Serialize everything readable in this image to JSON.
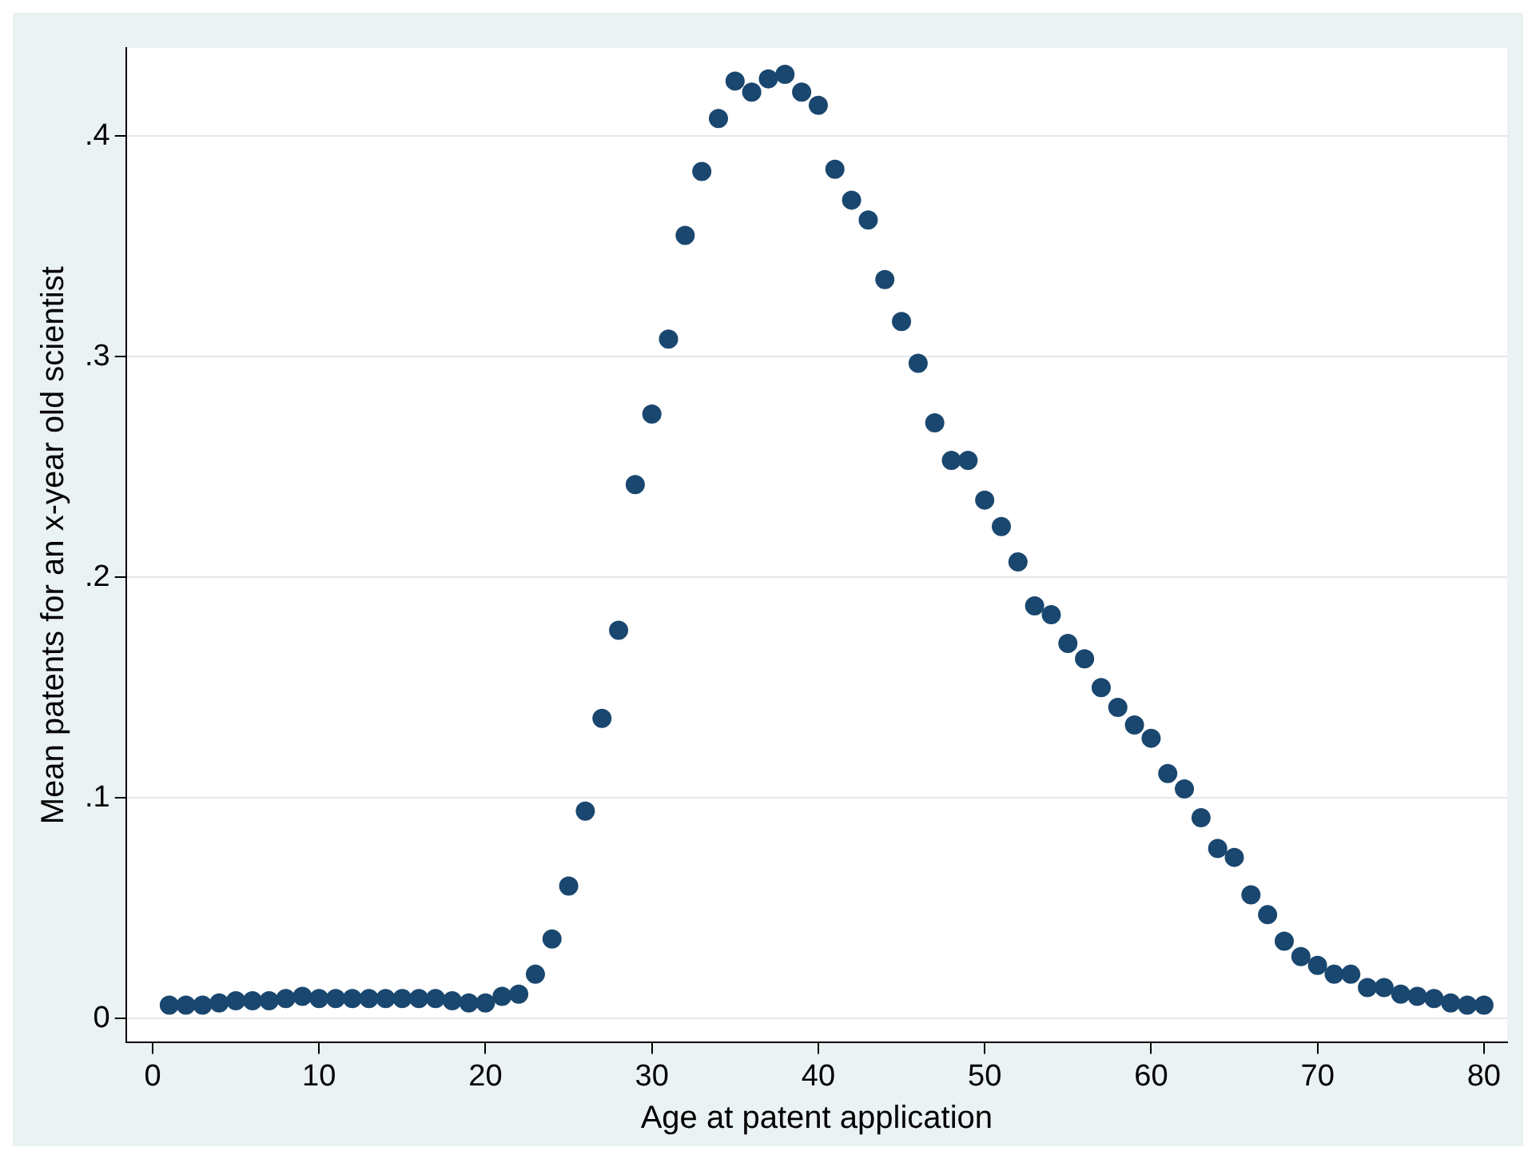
{
  "chart_data": {
    "type": "scatter",
    "xlabel": "Age at patent application",
    "ylabel": "Mean patents for an x-year old scientist",
    "x": [
      1,
      2,
      3,
      4,
      5,
      6,
      7,
      8,
      9,
      10,
      11,
      12,
      13,
      14,
      15,
      16,
      17,
      18,
      19,
      20,
      21,
      22,
      23,
      24,
      25,
      26,
      27,
      28,
      29,
      30,
      31,
      32,
      33,
      34,
      35,
      36,
      37,
      38,
      39,
      40,
      41,
      42,
      43,
      44,
      45,
      46,
      47,
      48,
      49,
      50,
      51,
      52,
      53,
      54,
      55,
      56,
      57,
      58,
      59,
      60,
      61,
      62,
      63,
      64,
      65,
      66,
      67,
      68,
      69,
      70,
      71,
      72,
      73,
      74,
      75,
      76,
      77,
      78,
      79,
      80
    ],
    "series": [
      {
        "color": "#1a476f",
        "values": [
          0.006,
          0.006,
          0.006,
          0.007,
          0.008,
          0.008,
          0.008,
          0.009,
          0.01,
          0.009,
          0.009,
          0.009,
          0.009,
          0.009,
          0.009,
          0.009,
          0.009,
          0.008,
          0.007,
          0.007,
          0.01,
          0.011,
          0.02,
          0.036,
          0.06,
          0.094,
          0.136,
          0.176,
          0.242,
          0.274,
          0.308,
          0.355,
          0.384,
          0.408,
          0.425,
          0.42,
          0.426,
          0.428,
          0.42,
          0.414,
          0.385,
          0.371,
          0.362,
          0.335,
          0.316,
          0.297,
          0.27,
          0.253,
          0.253,
          0.235,
          0.223,
          0.207,
          0.187,
          0.183,
          0.17,
          0.163,
          0.15,
          0.141,
          0.133,
          0.127,
          0.111,
          0.104,
          0.091,
          0.077,
          0.073,
          0.056,
          0.047,
          0.035,
          0.028,
          0.024,
          0.02,
          0.02,
          0.014,
          0.014,
          0.011,
          0.01,
          0.009,
          0.007,
          0.006,
          0.006
        ]
      }
    ],
    "xlim": [
      -1.6,
      81.4
    ],
    "xticks": [
      0,
      10,
      20,
      30,
      40,
      50,
      60,
      70,
      80
    ],
    "ylim": [
      -0.011,
      0.44
    ],
    "yticks": [
      0,
      {
        "value": 0.1,
        "label": ".1"
      },
      {
        "value": 0.2,
        "label": ".2"
      },
      {
        "value": 0.3,
        "label": ".3"
      },
      {
        "value": 0.4,
        "label": ".4"
      }
    ],
    "grid": "y",
    "marker": "circle",
    "legend": false
  }
}
